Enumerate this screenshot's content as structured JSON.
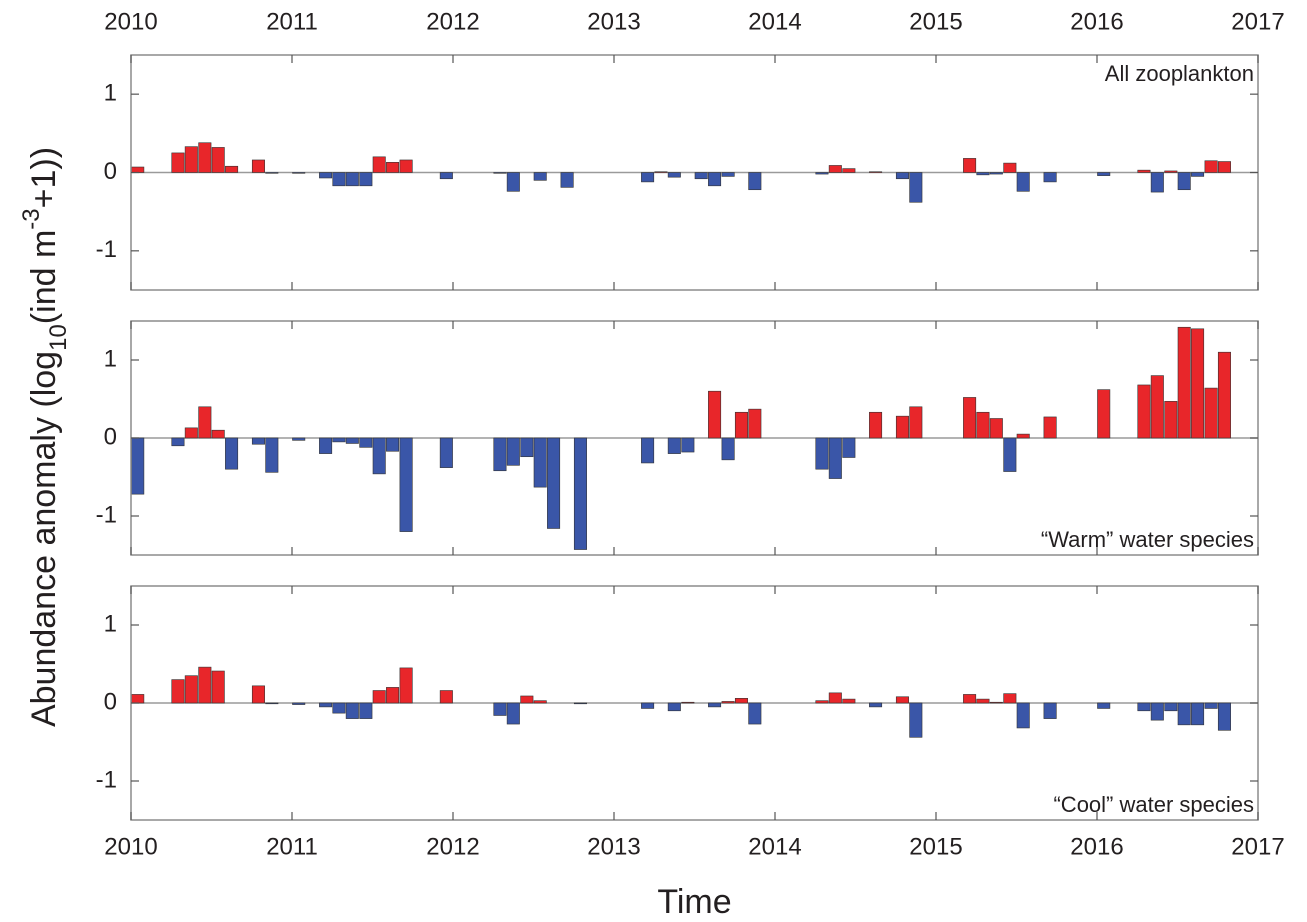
{
  "chart_data": [
    {
      "type": "bar",
      "annotation": "All zooplankton",
      "xtick_labels": "top",
      "xlim": [
        2010,
        2017
      ],
      "xticks": [
        2010,
        2011,
        2012,
        2013,
        2014,
        2015,
        2016,
        2017
      ],
      "ylim": [
        -1.5,
        1.5
      ],
      "yticks": [
        -1,
        0,
        1
      ],
      "pos_color": "#e8262a",
      "neg_color": "#3a56a8",
      "x": [
        2010,
        2010.25,
        2010.333,
        2010.417,
        2010.5,
        2010.583,
        2010.75,
        2010.833,
        2011,
        2011.167,
        2011.25,
        2011.333,
        2011.417,
        2011.5,
        2011.583,
        2011.667,
        2011.917,
        2012.25,
        2012.333,
        2012.417,
        2012.5,
        2012.583,
        2012.667,
        2012.75,
        2013.167,
        2013.25,
        2013.333,
        2013.417,
        2013.5,
        2013.583,
        2013.667,
        2013.75,
        2013.833,
        2014.25,
        2014.333,
        2014.417,
        2014.583,
        2014.75,
        2014.833,
        2015.167,
        2015.25,
        2015.333,
        2015.417,
        2015.5,
        2015.667,
        2016,
        2016.25,
        2016.333,
        2016.417,
        2016.5,
        2016.583,
        2016.667,
        2016.75
      ],
      "values": [
        0.07,
        0.25,
        0.33,
        0.38,
        0.32,
        0.08,
        0.16,
        -0.01,
        -0.01,
        -0.07,
        -0.17,
        -0.17,
        -0.17,
        0.2,
        0.13,
        0.16,
        -0.08,
        -0.01,
        -0.24,
        null,
        -0.1,
        null,
        -0.19,
        null,
        -0.12,
        0.01,
        -0.06,
        null,
        -0.08,
        -0.17,
        -0.05,
        null,
        -0.22,
        -0.02,
        0.09,
        0.05,
        0.01,
        -0.08,
        -0.38,
        0.18,
        -0.03,
        -0.02,
        0.12,
        -0.24,
        -0.12,
        -0.04,
        0.03,
        -0.25,
        0.02,
        -0.22,
        -0.05,
        0.15,
        0.14
      ]
    },
    {
      "type": "bar",
      "annotation": "“Warm” water species",
      "ylabel": [
        "Abundance anomaly (log",
        "10",
        "(ind m",
        "-3",
        "+1))"
      ],
      "xlim": [
        2010,
        2017
      ],
      "xticks": [
        2010,
        2011,
        2012,
        2013,
        2014,
        2015,
        2016,
        2017
      ],
      "ylim": [
        -1.5,
        1.5
      ],
      "yticks": [
        -1,
        0,
        1
      ],
      "pos_color": "#e8262a",
      "neg_color": "#3a56a8",
      "x": [
        2010,
        2010.25,
        2010.333,
        2010.417,
        2010.5,
        2010.583,
        2010.75,
        2010.833,
        2011,
        2011.167,
        2011.25,
        2011.333,
        2011.417,
        2011.5,
        2011.583,
        2011.667,
        2011.917,
        2012.25,
        2012.333,
        2012.417,
        2012.5,
        2012.583,
        2012.667,
        2012.75,
        2013.167,
        2013.25,
        2013.333,
        2013.417,
        2013.5,
        2013.583,
        2013.667,
        2013.75,
        2013.833,
        2014.25,
        2014.333,
        2014.417,
        2014.583,
        2014.75,
        2014.833,
        2015.167,
        2015.25,
        2015.333,
        2015.417,
        2015.5,
        2015.667,
        2016,
        2016.25,
        2016.333,
        2016.417,
        2016.5,
        2016.583,
        2016.667,
        2016.75
      ],
      "values": [
        -0.72,
        -0.1,
        0.13,
        0.4,
        0.1,
        -0.4,
        -0.08,
        -0.44,
        -0.03,
        -0.2,
        -0.05,
        -0.07,
        -0.12,
        -0.46,
        -0.17,
        -1.2,
        -0.38,
        -0.42,
        -0.35,
        -0.24,
        -0.63,
        -1.16,
        null,
        -1.43,
        -0.32,
        null,
        -0.2,
        -0.18,
        null,
        0.6,
        -0.28,
        0.33,
        0.37,
        -0.4,
        -0.52,
        -0.25,
        0.33,
        0.28,
        0.4,
        0.52,
        0.33,
        0.25,
        -0.43,
        0.05,
        0.27,
        0.62,
        0.68,
        0.8,
        0.47,
        1.42,
        1.4,
        0.64,
        1.1
      ]
    },
    {
      "type": "bar",
      "annotation": "“Cool” water species",
      "xtick_labels": "bottom",
      "xlabel": "Time",
      "xlim": [
        2010,
        2017
      ],
      "xticks": [
        2010,
        2011,
        2012,
        2013,
        2014,
        2015,
        2016,
        2017
      ],
      "ylim": [
        -1.5,
        1.5
      ],
      "yticks": [
        -1,
        0,
        1
      ],
      "pos_color": "#e8262a",
      "neg_color": "#3a56a8",
      "x": [
        2010,
        2010.25,
        2010.333,
        2010.417,
        2010.5,
        2010.583,
        2010.75,
        2010.833,
        2011,
        2011.167,
        2011.25,
        2011.333,
        2011.417,
        2011.5,
        2011.583,
        2011.667,
        2011.917,
        2012.25,
        2012.333,
        2012.417,
        2012.5,
        2012.583,
        2012.667,
        2012.75,
        2013.167,
        2013.25,
        2013.333,
        2013.417,
        2013.5,
        2013.583,
        2013.667,
        2013.75,
        2013.833,
        2014.25,
        2014.333,
        2014.417,
        2014.583,
        2014.75,
        2014.833,
        2015.167,
        2015.25,
        2015.333,
        2015.417,
        2015.5,
        2015.667,
        2016,
        2016.25,
        2016.333,
        2016.417,
        2016.5,
        2016.583,
        2016.667,
        2016.75
      ],
      "values": [
        0.11,
        0.3,
        0.35,
        0.46,
        0.41,
        null,
        0.22,
        -0.01,
        -0.02,
        -0.05,
        -0.13,
        -0.2,
        -0.2,
        0.16,
        0.2,
        0.45,
        0.16,
        -0.16,
        -0.27,
        0.09,
        0.03,
        null,
        null,
        -0.01,
        -0.07,
        null,
        -0.1,
        0.01,
        null,
        -0.05,
        0.02,
        0.06,
        -0.27,
        0.03,
        0.13,
        0.05,
        -0.05,
        0.08,
        -0.44,
        0.11,
        0.05,
        0.01,
        0.12,
        -0.32,
        -0.2,
        -0.07,
        -0.1,
        -0.22,
        -0.1,
        -0.28,
        -0.28,
        -0.07,
        -0.35
      ]
    }
  ]
}
